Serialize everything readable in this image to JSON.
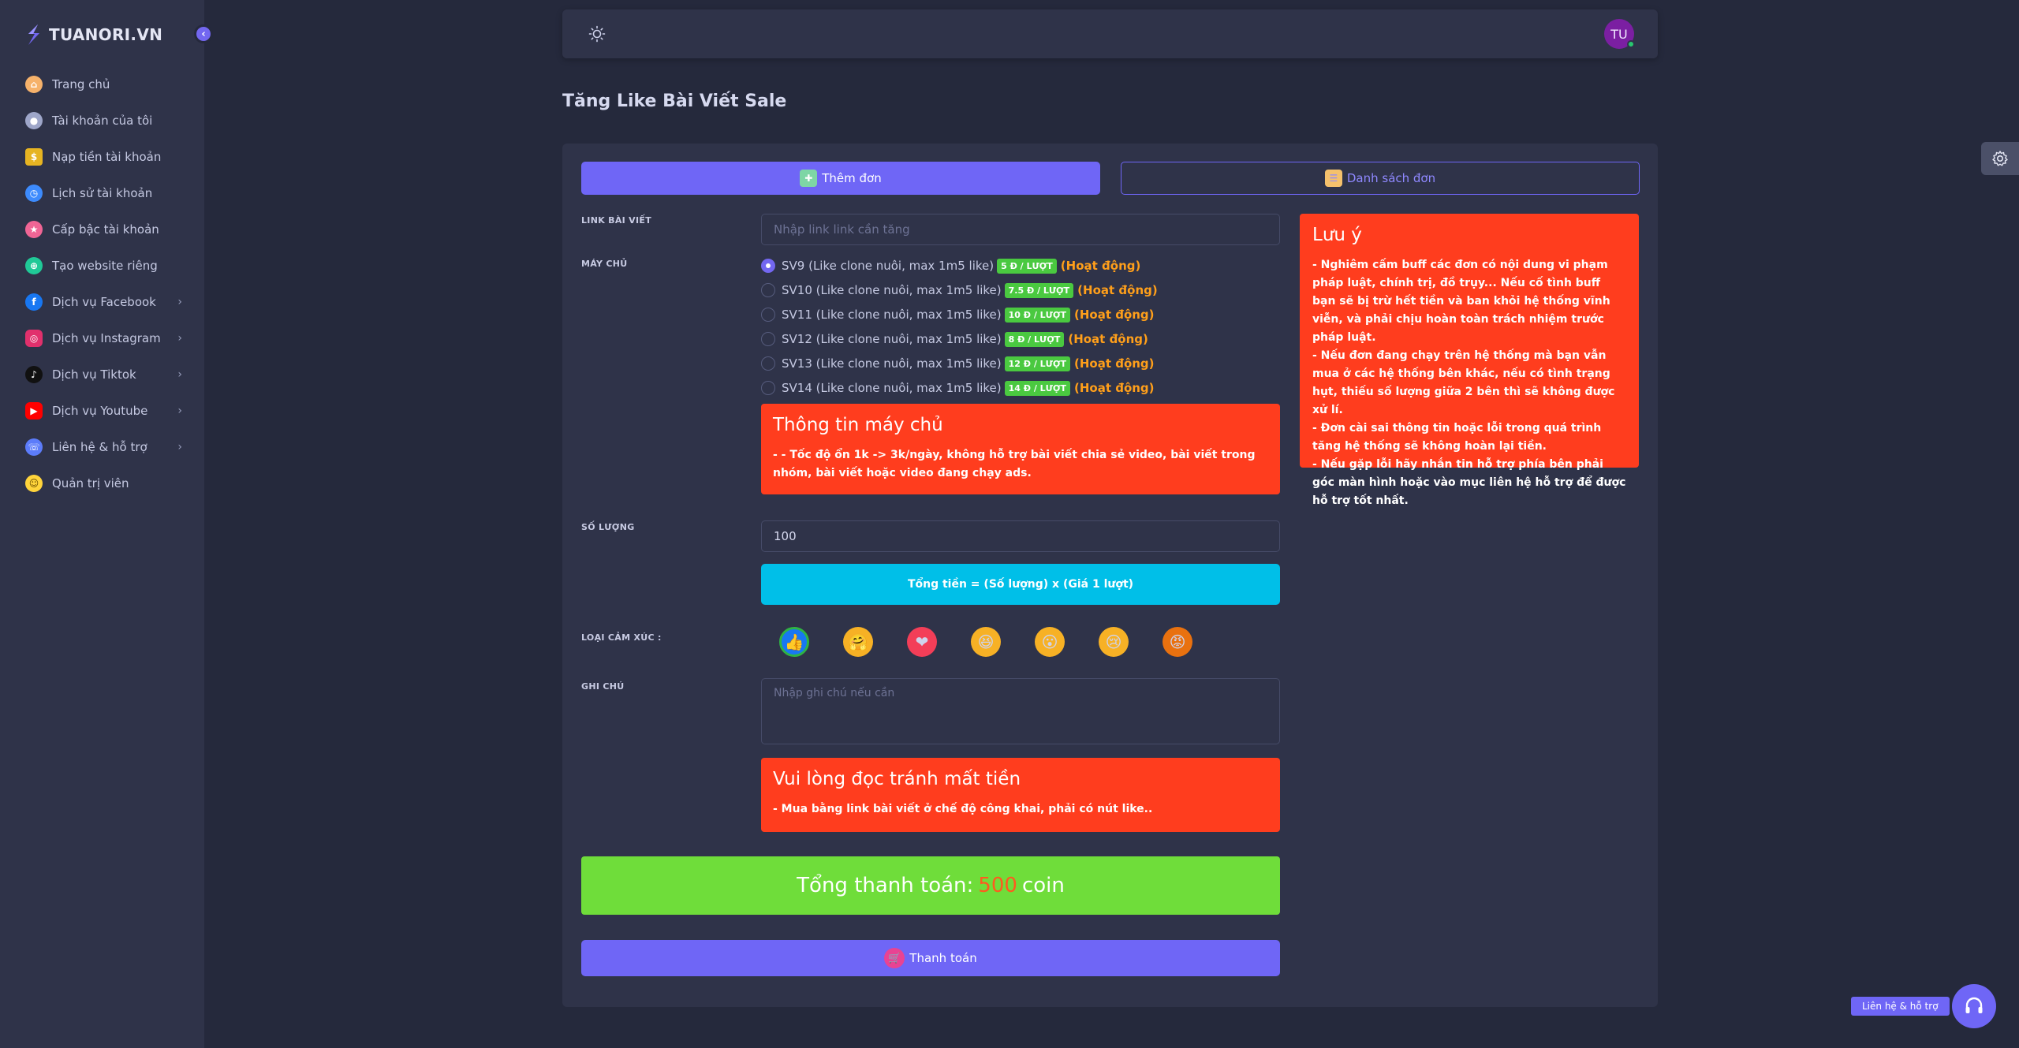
{
  "brand": {
    "name": "TUANORI.VN"
  },
  "sidebar": {
    "items": [
      {
        "label": "Trang chủ",
        "icon": "home-icon",
        "color": "#f6b26b",
        "has_submenu": false
      },
      {
        "label": "Tài khoản của tôi",
        "icon": "user-icon",
        "color": "#9ea6c9",
        "has_submenu": false
      },
      {
        "label": "Nạp tiền tài khoản",
        "icon": "money-icon",
        "color": "#e6b422",
        "has_submenu": false
      },
      {
        "label": "Lịch sử tài khoản",
        "icon": "history-icon",
        "color": "#3d8bfd",
        "has_submenu": false
      },
      {
        "label": "Cấp bậc tài khoản",
        "icon": "rank-icon",
        "color": "#f06595",
        "has_submenu": false
      },
      {
        "label": "Tạo website riêng",
        "icon": "globe-icon",
        "color": "#20c997",
        "has_submenu": false
      },
      {
        "label": "Dịch vụ Facebook",
        "icon": "facebook-icon",
        "color": "#1877f2",
        "has_submenu": true
      },
      {
        "label": "Dịch vụ Instagram",
        "icon": "instagram-icon",
        "color": "#e1306c",
        "has_submenu": true
      },
      {
        "label": "Dịch vụ Tiktok",
        "icon": "tiktok-icon",
        "color": "#111111",
        "has_submenu": true
      },
      {
        "label": "Dịch vụ Youtube",
        "icon": "youtube-icon",
        "color": "#ff0000",
        "has_submenu": true
      },
      {
        "label": "Liên hệ & hỗ trợ",
        "icon": "support-icon",
        "color": "#5c7cfa",
        "has_submenu": true
      },
      {
        "label": "Quản trị viên",
        "icon": "admin-icon",
        "color": "#ffd43b",
        "has_submenu": false
      }
    ]
  },
  "header": {
    "avatar_initials": "TU"
  },
  "page": {
    "title": "Tăng Like Bài Viết Sale"
  },
  "tabs": {
    "add": "Thêm đơn",
    "list": "Danh sách đơn"
  },
  "form": {
    "link_label": "LINK BÀI VIẾT",
    "link_placeholder": "Nhập link link cần tăng",
    "server_label": "MÁY CHỦ",
    "servers": [
      {
        "name": "SV9 (Like clone nuôi, max 1m5 like)",
        "price": "5 Đ / LƯỢT",
        "status": "(Hoạt động)",
        "checked": true
      },
      {
        "name": "SV10 (Like clone nuôi, max 1m5 like)",
        "price": "7.5 Đ / LƯỢT",
        "status": "(Hoạt động)",
        "checked": false
      },
      {
        "name": "SV11 (Like clone nuôi, max 1m5 like)",
        "price": "10 Đ / LƯỢT",
        "status": "(Hoạt động)",
        "checked": false
      },
      {
        "name": "SV12 (Like clone nuôi, max 1m5 like)",
        "price": "8 Đ / LƯỢT",
        "status": "(Hoạt động)",
        "checked": false
      },
      {
        "name": "SV13 (Like clone nuôi, max 1m5 like)",
        "price": "12 Đ / LƯỢT",
        "status": "(Hoạt động)",
        "checked": false
      },
      {
        "name": "SV14 (Like clone nuôi, max 1m5 like)",
        "price": "14 Đ / LƯỢT",
        "status": "(Hoạt động)",
        "checked": false
      }
    ],
    "server_info_title": "Thông tin máy chủ",
    "server_info_text": "- - Tốc độ ổn 1k -> 3k/ngày, không hỗ trợ bài viết chia sẻ video, bài viết trong nhóm, bài viết hoặc video đang chạy ads.",
    "quantity_label": "SỐ LƯỢNG",
    "quantity_value": "100",
    "formula_text": "Tổng tiền = (Số lượng) x (Giá 1 lượt)",
    "reaction_label": "LOẠI CẢM XÚC :",
    "reactions": [
      "like",
      "care",
      "love",
      "haha",
      "wow",
      "sad",
      "angry"
    ],
    "note_label": "GHI CHÚ",
    "note_placeholder": "Nhập ghi chú nếu cần",
    "warning_title": "Vui lòng đọc tránh mất tiền",
    "warning_text": "- Mua bằng link bài viết ở chế độ công khai, phải có nút like..",
    "total_prefix": "Tổng thanh toán:",
    "total_amount": "500",
    "total_unit": "coin",
    "pay_label": "Thanh toán"
  },
  "notice": {
    "title": "Lưu ý",
    "lines": [
      "- Nghiêm cấm buff các đơn có nội dung vi phạm pháp luật, chính trị, đồ trụy... Nếu cố tình buff bạn sẽ bị trừ hết tiền và ban khỏi hệ thống vĩnh viễn, và phải chịu hoàn toàn trách nhiệm trước pháp luật.",
      "- Nếu đơn đang chạy trên hệ thống mà bạn vẫn mua ở các hệ thống bên khác, nếu có tình trạng hụt, thiếu số lượng giữa 2 bên thì sẽ không được xử lí.",
      "- Đơn cài sai thông tin hoặc lỗi trong quá trình tăng hệ thống sẽ không hoàn lại tiền.",
      "- Nếu gặp lỗi hãy nhắn tin hỗ trợ phía bên phải góc màn hình hoặc vào mục liên hệ hỗ trợ để được hỗ trợ tốt nhất."
    ]
  },
  "help": {
    "label": "Liên hệ & hỗ trợ"
  }
}
